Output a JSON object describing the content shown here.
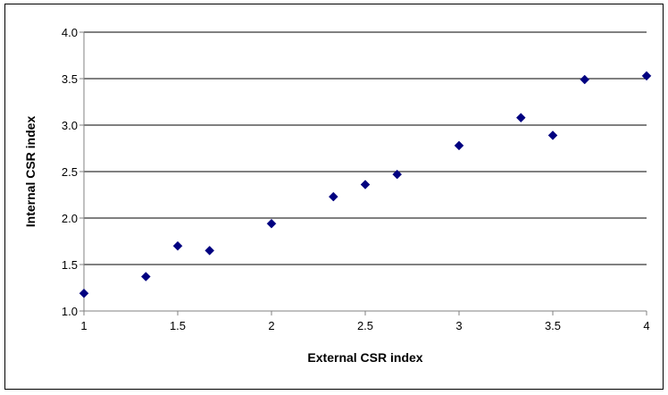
{
  "chart_data": {
    "type": "scatter",
    "title": "",
    "xlabel": "External CSR index",
    "ylabel": "Internal CSR index",
    "xlim": [
      1,
      4
    ],
    "ylim": [
      1.0,
      4.0
    ],
    "x_ticks": [
      "1",
      "1.5",
      "2",
      "2.5",
      "3",
      "3.5",
      "4"
    ],
    "x_tick_values": [
      1,
      1.5,
      2,
      2.5,
      3,
      3.5,
      4
    ],
    "y_ticks": [
      "1.0",
      "1.5",
      "2.0",
      "2.5",
      "3.0",
      "3.5",
      "4.0"
    ],
    "y_tick_values": [
      1.0,
      1.5,
      2.0,
      2.5,
      3.0,
      3.5,
      4.0
    ],
    "grid": "horizontal",
    "legend": "none",
    "marker": "diamond",
    "marker_color": "#000080",
    "series": [
      {
        "points": [
          {
            "x": 1.0,
            "y": 1.19
          },
          {
            "x": 1.33,
            "y": 1.37
          },
          {
            "x": 1.5,
            "y": 1.7
          },
          {
            "x": 1.67,
            "y": 1.65
          },
          {
            "x": 2.0,
            "y": 1.94
          },
          {
            "x": 2.33,
            "y": 2.23
          },
          {
            "x": 2.5,
            "y": 2.36
          },
          {
            "x": 2.67,
            "y": 2.47
          },
          {
            "x": 3.0,
            "y": 2.78
          },
          {
            "x": 3.33,
            "y": 3.08
          },
          {
            "x": 3.5,
            "y": 2.89
          },
          {
            "x": 3.67,
            "y": 3.49
          },
          {
            "x": 4.0,
            "y": 3.53
          }
        ]
      }
    ]
  }
}
